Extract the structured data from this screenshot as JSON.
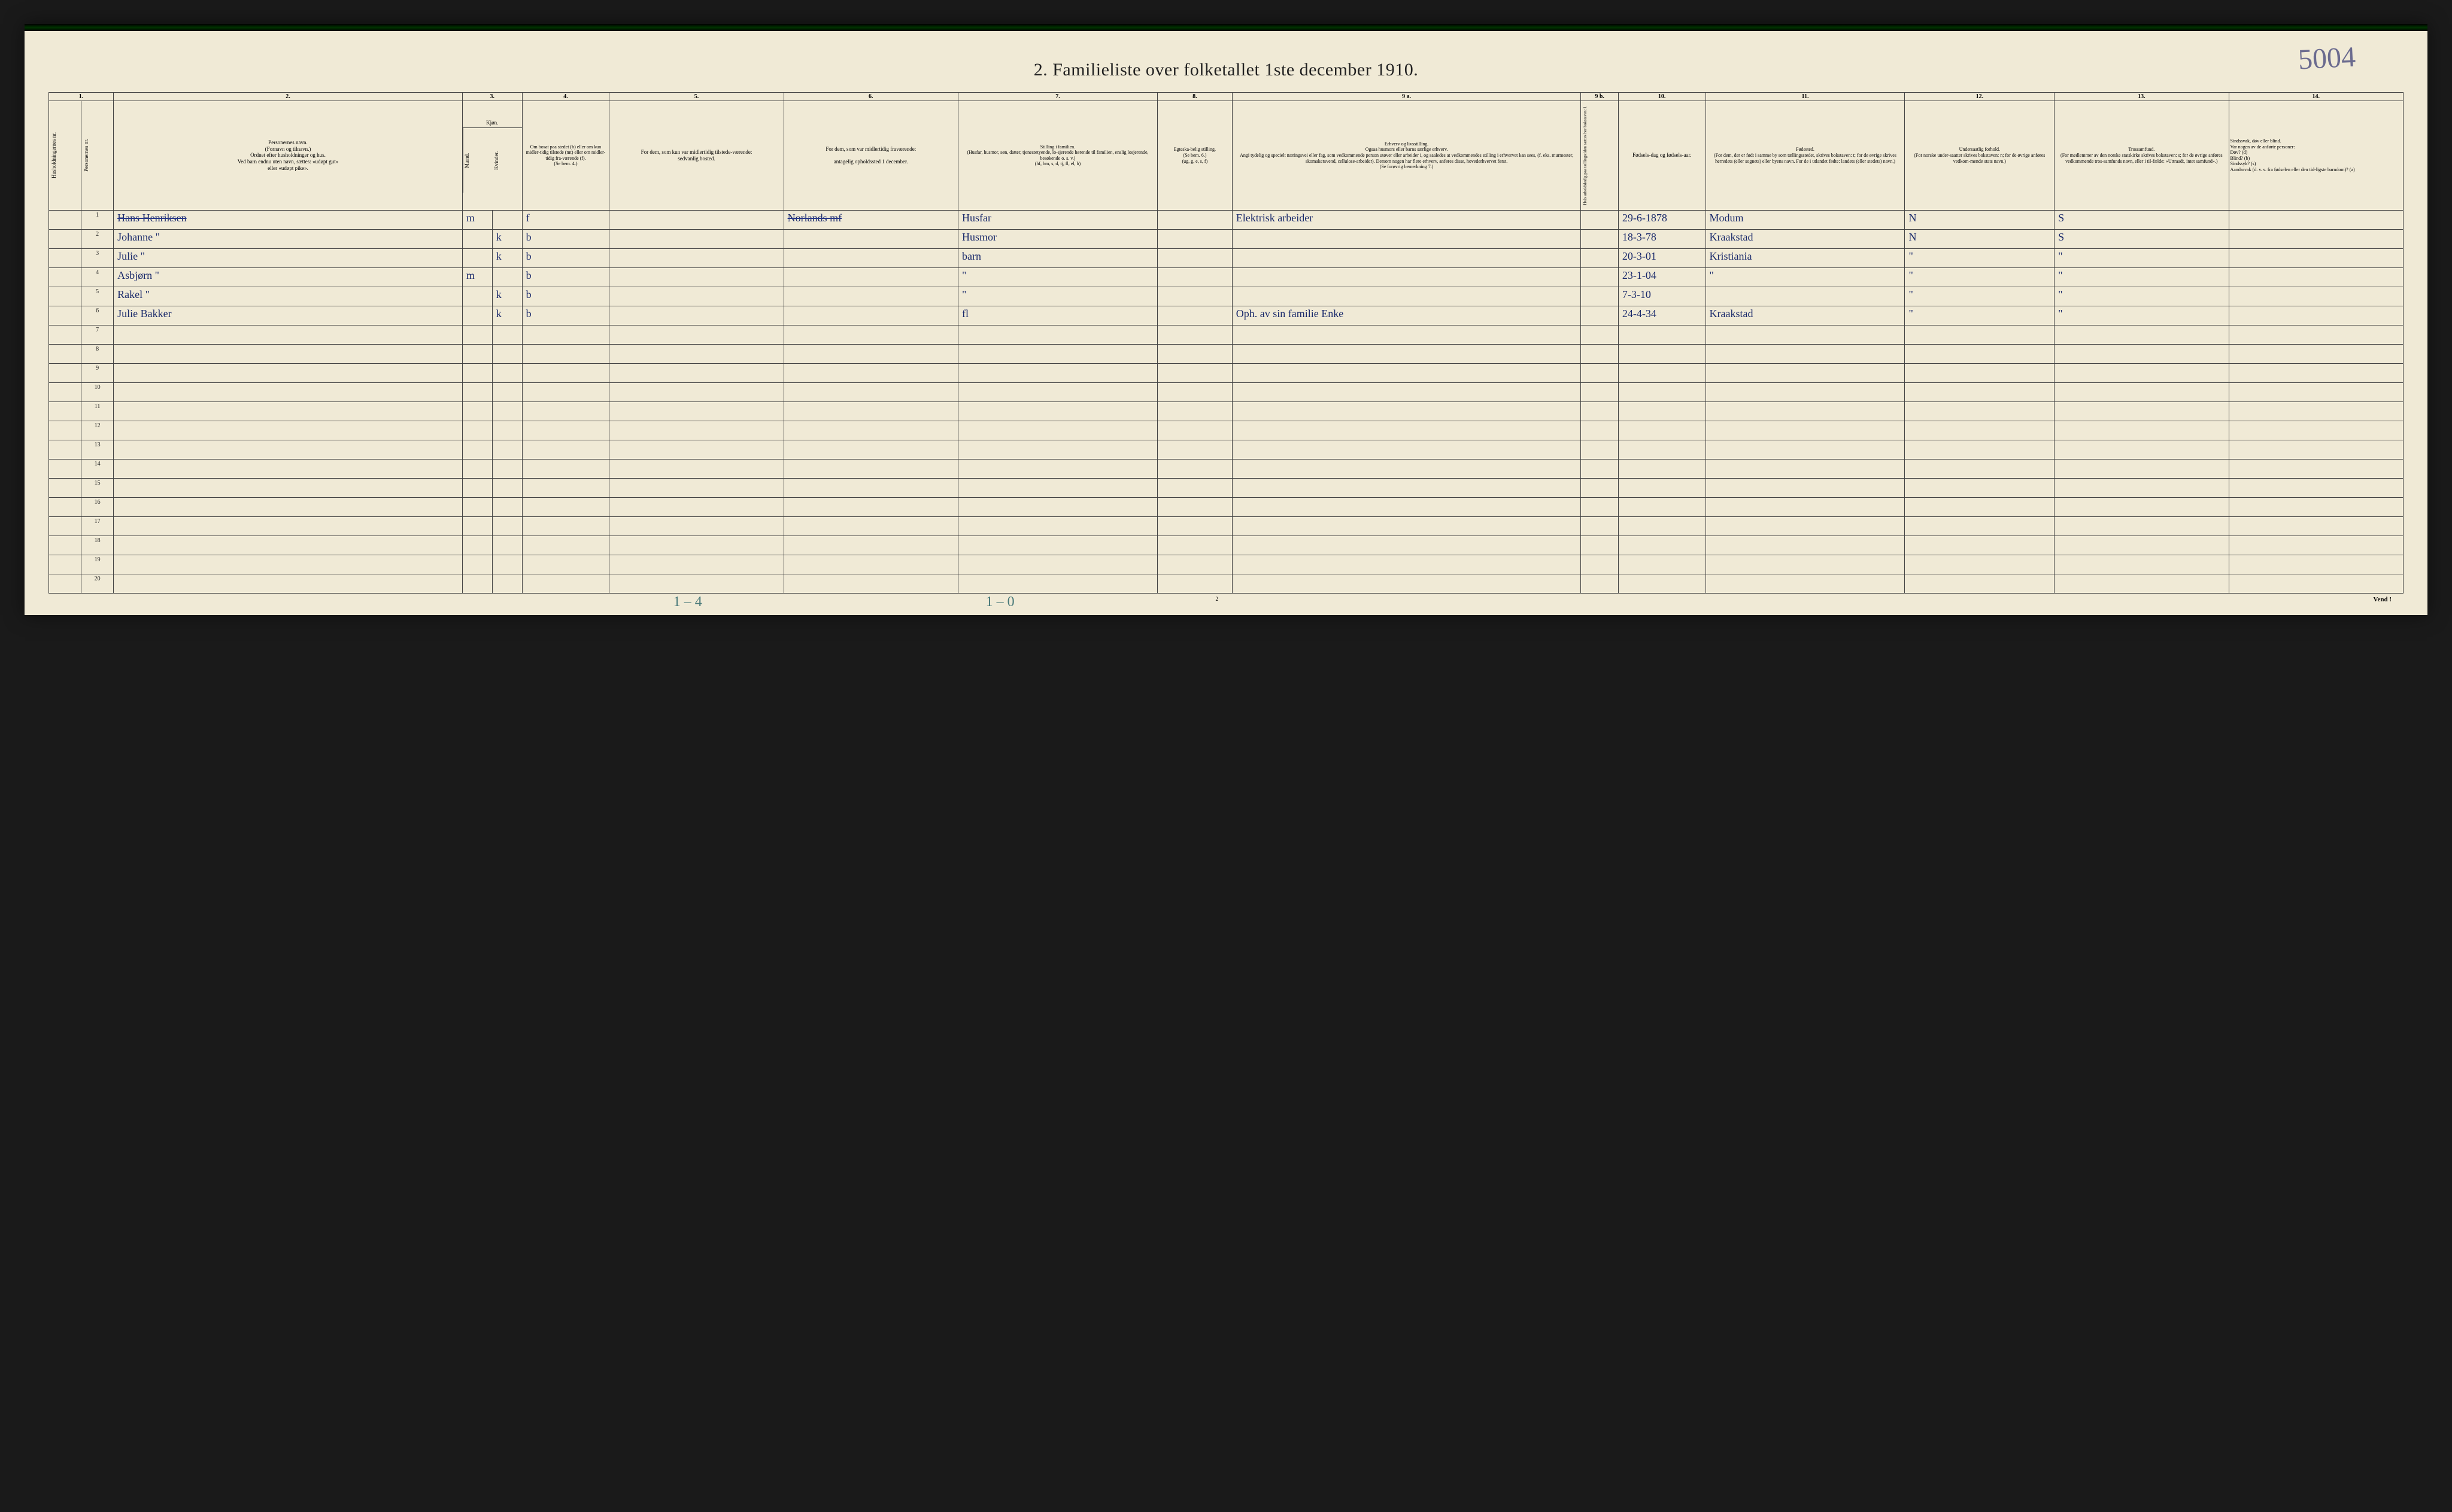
{
  "page": {
    "scribble": "5004",
    "title": "2.  Familieliste over folketallet 1ste december 1910.",
    "footer_mid": "2",
    "footer_right": "Vend !",
    "pencil_left": "1 – 4",
    "pencil_mid": "1 – 0"
  },
  "colnums": [
    "1.",
    "2.",
    "3.",
    "4.",
    "5.",
    "6.",
    "7.",
    "8.",
    "9 a.",
    "9 b.",
    "10.",
    "11.",
    "12.",
    "13.",
    "14."
  ],
  "headers": {
    "c1a": "Husholdningernes nr.",
    "c1b": "Personernes nr.",
    "c2": "Personernes navn.\n(Fornavn og tilnavn.)\nOrdnet efter husholdninger og hus.\nVed barn endnu uten navn, sættes: «udøpt gut»\neller «udøpt pike».",
    "c3": "Kjøn.",
    "c3a": "Mænd.",
    "c3b": "Kvinder.",
    "c4": "Om bosat paa stedet (b) eller om kun midler-tidig tilstede (mt) eller om midler-tidig fra-værende (f).\n(Se bem. 4.)",
    "c5": "For dem, som kun var midlertidig tilstede-værende:\nsedvanlig bosted.",
    "c6": "For dem, som var midlertidig fraværende:\n\nantagelig opholdssted 1 december.",
    "c7": "Stilling i familien.\n(Husfar, husmor, søn, datter, tjenestetyende, lo-sjerende hørende til familien, enslig losjerende, besøkende o. s. v.)\n(hf, hm, s, d, tj, fl, el, b)",
    "c8": "Egteska-belig stilling.\n(Se bem. 6.)\n(ug, g, e, s, f)",
    "c9a": "Erhverv og livsstilling.\nOgsaa husmors eller barns særlige erhverv.\nAngi tydelig og specielt næringsvei eller fag, som vedkommende person utøver eller arbeider i, og saaledes at vedkommendes stilling i erhvervet kan sees, (f. eks. murmester, skomakersvend, cellulose-arbeider). Dersom nogen har flere erhverv, anføres disse, hovederhvervet først.\n(Se forøvrig bemerkning 7.)",
    "c9b": "Hvis arbeidsledig paa tællingstiden sættes her bokstaven: l.",
    "c10": "Fødsels-dag og fødsels-aar.",
    "c11": "Fødested.\n(For dem, der er født i samme by som tællingsstedet, skrives bokstaven: t; for de øvrige skrives herredets (eller sognets) eller byens navn. For de i utlandet fødte: landets (eller stedets) navn.)",
    "c12": "Undersaatlig forhold.\n(For norske under-saatter skrives bokstaven: n; for de øvrige anføres vedkom-mende stats navn.)",
    "c13": "Trossamfund.\n(For medlemmer av den norske statskirke skrives bokstaven: s; for de øvrige anføres vedkommende tros-samfunds navn, eller i til-fælde: «Uttraadt, intet samfund».)",
    "c14": "Sindssvak, døv eller blind.\nVar nogen av de anførte personer:\nDøv?      (d)\nBlind?    (b)\nSindssyk? (s)\nAandssvak (d. v. s. fra fødselen eller den tid-ligste barndom)? (a)"
  },
  "rows": [
    {
      "n": "1",
      "name": "Hans  Henriksen",
      "name_struck": true,
      "m": "m",
      "k": "",
      "c4": "f",
      "c5": "",
      "c6": "Norlands\nmf",
      "c6_struck": true,
      "c7": "Husfar",
      "c8": "",
      "c9a": "Elektrisk arbeider",
      "c9b": "",
      "c10": "29-6-1878",
      "c11": "Modum",
      "c12": "N",
      "c13": "S",
      "c14": ""
    },
    {
      "n": "2",
      "name": "Johanne    \"",
      "m": "",
      "k": "k",
      "c4": "b",
      "c5": "",
      "c6": "",
      "c7": "Husmor",
      "c8": "",
      "c9a": "",
      "c9b": "",
      "c10": "18-3-78",
      "c11": "Kraakstad",
      "c12": "N",
      "c13": "S",
      "c14": ""
    },
    {
      "n": "3",
      "name": "Julie        \"",
      "m": "",
      "k": "k",
      "c4": "b",
      "c5": "",
      "c6": "",
      "c7": "barn",
      "c8": "",
      "c9a": "",
      "c9b": "",
      "c10": "20-3-01",
      "c11": "Kristiania",
      "c12": "\"",
      "c13": "\"",
      "c14": ""
    },
    {
      "n": "4",
      "name": "Asbjørn   \"",
      "m": "m",
      "k": "",
      "c4": "b",
      "c5": "",
      "c6": "",
      "c7": "\"",
      "c8": "",
      "c9a": "",
      "c9b": "",
      "c10": "23-1-04",
      "c11": "\"",
      "c12": "\"",
      "c13": "\"",
      "c14": ""
    },
    {
      "n": "5",
      "name": "Rakel       \"",
      "m": "",
      "k": "k",
      "c4": "b",
      "c5": "",
      "c6": "",
      "c7": "\"",
      "c8": "",
      "c9a": "",
      "c9b": "",
      "c10": "7-3-10",
      "c11": "",
      "c12": "\"",
      "c13": "\"",
      "c14": ""
    },
    {
      "n": "6",
      "name": "Julie   Bakker",
      "m": "",
      "k": "k",
      "c4": "b",
      "c5": "",
      "c6": "",
      "c7": "fl",
      "c8": "",
      "c9a": "Oph. av sin familie  Enke",
      "c9b": "",
      "c10": "24-4-34",
      "c11": "Kraakstad",
      "c12": "\"",
      "c13": "\"",
      "c14": ""
    },
    {
      "n": "7"
    },
    {
      "n": "8"
    },
    {
      "n": "9"
    },
    {
      "n": "10"
    },
    {
      "n": "11"
    },
    {
      "n": "12"
    },
    {
      "n": "13"
    },
    {
      "n": "14"
    },
    {
      "n": "15"
    },
    {
      "n": "16"
    },
    {
      "n": "17"
    },
    {
      "n": "18"
    },
    {
      "n": "19"
    },
    {
      "n": "20"
    }
  ],
  "colwidths": {
    "c1a": 1.3,
    "c1b": 1.3,
    "c2": 14,
    "c3a": 1.2,
    "c3b": 1.2,
    "c4": 3.5,
    "c5": 7,
    "c6": 7,
    "c7": 8,
    "c8": 3,
    "c9a": 14,
    "c9b": 1.5,
    "c10": 3.5,
    "c11": 8,
    "c12": 6,
    "c13": 7,
    "c14": 7
  },
  "style": {
    "paper_color": "#f0ead6",
    "ink_color": "#1a2a6b",
    "rule_color": "#444444",
    "title_fontsize": 30,
    "header_fontsize": 9,
    "hand_fontsize": 18
  }
}
